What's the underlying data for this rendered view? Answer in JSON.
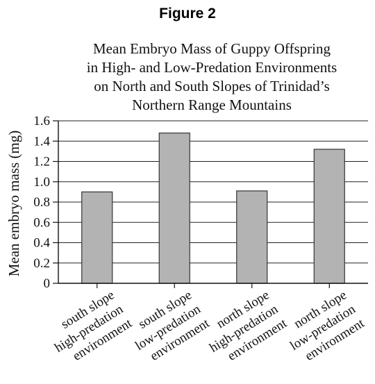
{
  "figure_label": "Figure 2",
  "chart_data": {
    "type": "bar",
    "title_lines": [
      "Mean Embryo Mass of Guppy Offspring",
      "in High- and Low-Predation Environments",
      "on North and South Slopes of Trinidad’s",
      "Northern Range Mountains"
    ],
    "ylabel": "Mean embryo mass (mg)",
    "ylim": [
      0,
      1.6
    ],
    "yticks": [
      "0",
      "0.2",
      "0.4",
      "0.6",
      "0.8",
      "1.0",
      "1.2",
      "1.4",
      "1.6"
    ],
    "grid": true,
    "categories": [
      [
        "south slope",
        "high-predation",
        "environment"
      ],
      [
        "south slope",
        "low-predation",
        "environment"
      ],
      [
        "north slope",
        "high-predation",
        "environment"
      ],
      [
        "north slope",
        "low-predation",
        "environment"
      ]
    ],
    "values": [
      0.9,
      1.48,
      0.91,
      1.32
    ],
    "colors": {
      "bar_fill": "#b3b3b3",
      "bar_stroke": "#333333",
      "grid": "#222222"
    }
  }
}
